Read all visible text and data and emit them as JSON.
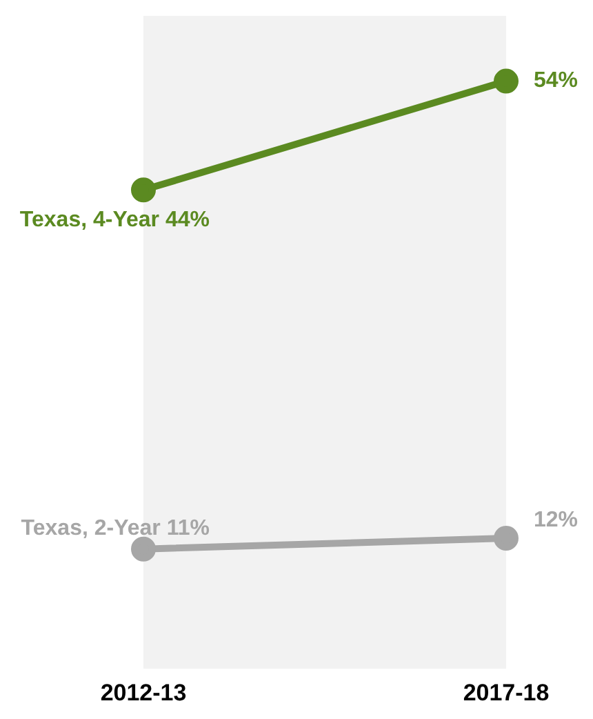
{
  "chart_data": {
    "type": "line",
    "categories": [
      "2012-13",
      "2017-18"
    ],
    "series": [
      {
        "name": "Texas, 4-Year",
        "color": "#5b8a21",
        "values": [
          44,
          54
        ],
        "value_labels": [
          "44%",
          "54%"
        ]
      },
      {
        "name": "Texas, 2-Year",
        "color": "#a6a6a6",
        "values": [
          11,
          12
        ],
        "value_labels": [
          "11%",
          "12%"
        ]
      }
    ],
    "bands": [
      {
        "axis": "x",
        "from": "2012-13",
        "to": "2017-18",
        "color": "#f2f2f2"
      }
    ],
    "legend": false,
    "grid": false,
    "marker": "circle",
    "line_style": "solid",
    "tick_labels": "x"
  }
}
